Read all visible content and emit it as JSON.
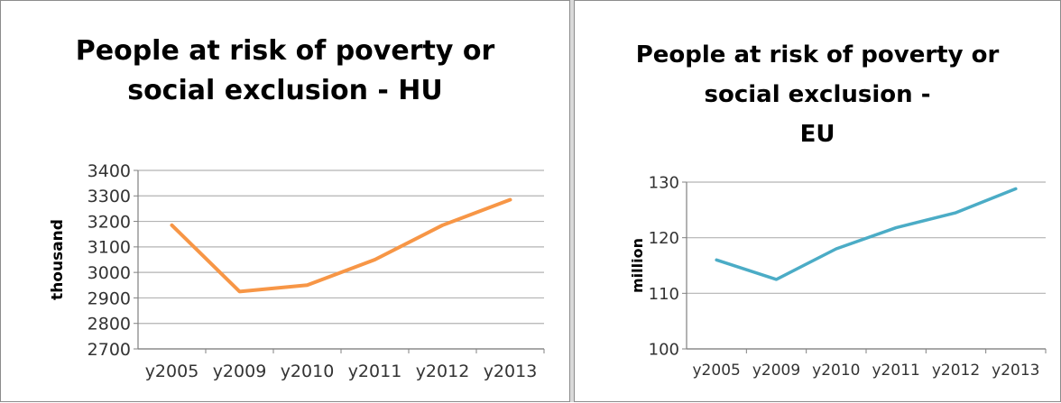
{
  "chart_data": [
    {
      "type": "line",
      "title_lines": [
        "People at risk of poverty  or",
        "social exclusion - HU"
      ],
      "ylabel": "thousand",
      "xlabel": "",
      "categories": [
        "y2005",
        "y2009",
        "y2010",
        "y2011",
        "y2012",
        "y2013"
      ],
      "ylim": [
        2700,
        3400
      ],
      "yticks": [
        2700,
        2800,
        2900,
        3000,
        3100,
        3200,
        3300,
        3400
      ],
      "grid": true,
      "legend": "none",
      "series": [
        {
          "values": [
            3185,
            2925,
            2950,
            3050,
            3185,
            3285
          ],
          "color": "#f79646"
        }
      ]
    },
    {
      "type": "line",
      "title_lines": [
        "People at risk of poverty or",
        "social exclusion -",
        "EU"
      ],
      "ylabel": "million",
      "xlabel": "",
      "categories": [
        "y2005",
        "y2009",
        "y2010",
        "y2011",
        "y2012",
        "y2013"
      ],
      "ylim": [
        100,
        130
      ],
      "yticks": [
        100,
        110,
        120,
        130
      ],
      "grid": true,
      "legend": "none",
      "series": [
        {
          "values": [
            116,
            112.5,
            118,
            121.8,
            124.5,
            128.8
          ],
          "color": "#4bacc6"
        }
      ]
    }
  ]
}
